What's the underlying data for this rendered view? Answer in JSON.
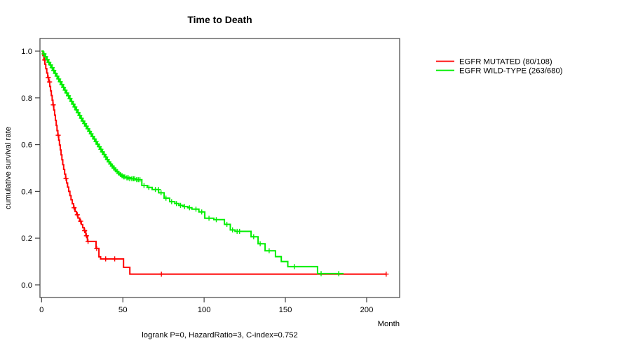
{
  "chart_data": {
    "type": "line",
    "subtype": "kaplan-meier-step",
    "title": "Time to Death",
    "xlabel": "Month",
    "ylabel": "cumulative survival rate",
    "annotation": "logrank P=0, HazardRatio=3, C-index=0.752",
    "legend_position": "right-outside",
    "grid": false,
    "xlim": [
      -1,
      220.3
    ],
    "ylim": [
      -0.054,
      1.054
    ],
    "x_ticks": [
      0,
      50,
      100,
      150,
      200
    ],
    "x_tick_labels": [
      "0",
      "50",
      "100",
      "150",
      "200"
    ],
    "y_ticks": [
      0.0,
      0.2,
      0.4,
      0.6,
      0.8,
      1.0
    ],
    "y_tick_labels": [
      "0.0",
      "0.2",
      "0.4",
      "0.6",
      "0.8",
      "1.0"
    ],
    "axis_color": "#444444",
    "text_color": "#000000",
    "series": [
      {
        "name": "EGFR MUTATED (80/108)",
        "color": "#ff0000",
        "start_value": 1.0,
        "end_month": 212,
        "steps": [
          [
            0.8,
            0.981
          ],
          [
            1.4,
            0.962
          ],
          [
            2.0,
            0.944
          ],
          [
            2.6,
            0.925
          ],
          [
            3.2,
            0.906
          ],
          [
            3.8,
            0.887
          ],
          [
            4.4,
            0.868
          ],
          [
            5.0,
            0.849
          ],
          [
            5.5,
            0.83
          ],
          [
            6.0,
            0.81
          ],
          [
            6.5,
            0.79
          ],
          [
            7.0,
            0.77
          ],
          [
            7.5,
            0.748
          ],
          [
            8.0,
            0.726
          ],
          [
            8.5,
            0.704
          ],
          [
            9.0,
            0.682
          ],
          [
            9.5,
            0.66
          ],
          [
            10.0,
            0.64
          ],
          [
            10.5,
            0.619
          ],
          [
            11.0,
            0.598
          ],
          [
            11.5,
            0.577
          ],
          [
            12.0,
            0.556
          ],
          [
            12.5,
            0.535
          ],
          [
            13.0,
            0.514
          ],
          [
            13.6,
            0.494
          ],
          [
            14.2,
            0.474
          ],
          [
            14.8,
            0.455
          ],
          [
            15.4,
            0.436
          ],
          [
            16.0,
            0.418
          ],
          [
            16.7,
            0.4
          ],
          [
            17.4,
            0.382
          ],
          [
            18.1,
            0.364
          ],
          [
            18.9,
            0.347
          ],
          [
            19.7,
            0.33
          ],
          [
            20.6,
            0.314
          ],
          [
            21.5,
            0.3
          ],
          [
            22.4,
            0.286
          ],
          [
            23.4,
            0.272
          ],
          [
            24.4,
            0.258
          ],
          [
            25.3,
            0.245
          ],
          [
            26.2,
            0.232
          ],
          [
            27.2,
            0.21
          ],
          [
            28.2,
            0.186
          ],
          [
            33.5,
            0.156
          ],
          [
            35.3,
            0.12
          ],
          [
            36.3,
            0.111
          ],
          [
            50.4,
            0.075
          ],
          [
            54.3,
            0.046
          ]
        ],
        "censors": [
          [
            1.8,
            0.962
          ],
          [
            4.1,
            0.887
          ],
          [
            4.9,
            0.868
          ],
          [
            7.2,
            0.77
          ],
          [
            10.2,
            0.64
          ],
          [
            15.0,
            0.455
          ],
          [
            20.0,
            0.33
          ],
          [
            22.0,
            0.3
          ],
          [
            24.0,
            0.272
          ],
          [
            26.5,
            0.232
          ],
          [
            27.6,
            0.21
          ],
          [
            28.6,
            0.186
          ],
          [
            33.9,
            0.156
          ],
          [
            39.4,
            0.111
          ],
          [
            45.0,
            0.111
          ],
          [
            73.7,
            0.046
          ],
          [
            212,
            0.046
          ]
        ]
      },
      {
        "name": "EGFR WILD-TYPE (263/680)",
        "color": "#00ee00",
        "start_value": 1.0,
        "end_month": 185.8,
        "steps": [
          [
            1,
            0.988
          ],
          [
            2,
            0.976
          ],
          [
            3,
            0.964
          ],
          [
            4,
            0.952
          ],
          [
            5,
            0.941
          ],
          [
            6,
            0.929
          ],
          [
            7,
            0.917
          ],
          [
            8,
            0.905
          ],
          [
            9,
            0.893
          ],
          [
            10,
            0.881
          ],
          [
            11,
            0.869
          ],
          [
            12,
            0.857
          ],
          [
            13,
            0.845
          ],
          [
            14,
            0.833
          ],
          [
            15,
            0.821
          ],
          [
            16,
            0.809
          ],
          [
            17,
            0.797
          ],
          [
            18,
            0.785
          ],
          [
            19,
            0.773
          ],
          [
            20,
            0.761
          ],
          [
            21,
            0.749
          ],
          [
            22,
            0.737
          ],
          [
            23,
            0.725
          ],
          [
            24,
            0.713
          ],
          [
            25,
            0.701
          ],
          [
            26,
            0.69
          ],
          [
            27,
            0.679
          ],
          [
            28,
            0.668
          ],
          [
            29,
            0.657
          ],
          [
            30,
            0.646
          ],
          [
            31,
            0.635
          ],
          [
            32,
            0.624
          ],
          [
            33,
            0.613
          ],
          [
            34,
            0.602
          ],
          [
            35,
            0.591
          ],
          [
            36,
            0.58
          ],
          [
            37,
            0.569
          ],
          [
            38,
            0.558
          ],
          [
            39,
            0.547
          ],
          [
            40,
            0.536
          ],
          [
            41,
            0.526
          ],
          [
            42,
            0.517
          ],
          [
            43,
            0.508
          ],
          [
            44,
            0.5
          ],
          [
            45,
            0.492
          ],
          [
            46,
            0.485
          ],
          [
            47,
            0.478
          ],
          [
            48,
            0.472
          ],
          [
            49,
            0.467
          ],
          [
            50,
            0.462
          ],
          [
            52,
            0.458
          ],
          [
            55,
            0.454
          ],
          [
            58,
            0.45
          ],
          [
            61.7,
            0.425
          ],
          [
            65,
            0.417
          ],
          [
            68,
            0.408
          ],
          [
            72,
            0.394
          ],
          [
            75.4,
            0.371
          ],
          [
            78.8,
            0.356
          ],
          [
            82,
            0.348
          ],
          [
            84.5,
            0.34
          ],
          [
            87,
            0.335
          ],
          [
            90,
            0.33
          ],
          [
            92.5,
            0.324
          ],
          [
            96.8,
            0.312
          ],
          [
            100.4,
            0.285
          ],
          [
            106,
            0.279
          ],
          [
            112.5,
            0.259
          ],
          [
            116.1,
            0.235
          ],
          [
            119,
            0.229
          ],
          [
            128.9,
            0.206
          ],
          [
            133.2,
            0.176
          ],
          [
            137.5,
            0.146
          ],
          [
            143.9,
            0.121
          ],
          [
            147.5,
            0.1
          ],
          [
            151.5,
            0.078
          ],
          [
            169.8,
            0.048
          ]
        ],
        "censors": [
          [
            1.5,
            0.988
          ],
          [
            2.5,
            0.976
          ],
          [
            3.5,
            0.964
          ],
          [
            4.5,
            0.952
          ],
          [
            5.5,
            0.941
          ],
          [
            6.5,
            0.929
          ],
          [
            7.5,
            0.917
          ],
          [
            8.5,
            0.905
          ],
          [
            9.5,
            0.893
          ],
          [
            10.5,
            0.881
          ],
          [
            11.5,
            0.869
          ],
          [
            12.5,
            0.857
          ],
          [
            13.5,
            0.845
          ],
          [
            14.5,
            0.833
          ],
          [
            15.5,
            0.821
          ],
          [
            16.5,
            0.809
          ],
          [
            17.5,
            0.797
          ],
          [
            18.5,
            0.785
          ],
          [
            19.5,
            0.773
          ],
          [
            20.5,
            0.761
          ],
          [
            21.5,
            0.749
          ],
          [
            22.5,
            0.737
          ],
          [
            23.5,
            0.725
          ],
          [
            24.5,
            0.713
          ],
          [
            25.5,
            0.701
          ],
          [
            26.5,
            0.69
          ],
          [
            27.5,
            0.679
          ],
          [
            28.5,
            0.668
          ],
          [
            29.5,
            0.657
          ],
          [
            30.5,
            0.646
          ],
          [
            31.5,
            0.635
          ],
          [
            32.5,
            0.624
          ],
          [
            33.5,
            0.613
          ],
          [
            34.5,
            0.602
          ],
          [
            35.5,
            0.591
          ],
          [
            36.5,
            0.58
          ],
          [
            37.5,
            0.569
          ],
          [
            38.5,
            0.558
          ],
          [
            39.5,
            0.547
          ],
          [
            40.5,
            0.536
          ],
          [
            41.5,
            0.526
          ],
          [
            42.5,
            0.517
          ],
          [
            43.5,
            0.508
          ],
          [
            44.5,
            0.5
          ],
          [
            45.5,
            0.492
          ],
          [
            46.5,
            0.485
          ],
          [
            47.5,
            0.478
          ],
          [
            48.5,
            0.472
          ],
          [
            49.5,
            0.467
          ],
          [
            50.5,
            0.462
          ],
          [
            51.2,
            0.462
          ],
          [
            52.5,
            0.458
          ],
          [
            53.3,
            0.458
          ],
          [
            54.2,
            0.454
          ],
          [
            55.5,
            0.454
          ],
          [
            56.5,
            0.454
          ],
          [
            57.3,
            0.454
          ],
          [
            58.5,
            0.45
          ],
          [
            59.5,
            0.45
          ],
          [
            60.5,
            0.45
          ],
          [
            63,
            0.425
          ],
          [
            66,
            0.417
          ],
          [
            70,
            0.408
          ],
          [
            71.9,
            0.408
          ],
          [
            73.5,
            0.394
          ],
          [
            76.5,
            0.371
          ],
          [
            80,
            0.356
          ],
          [
            83,
            0.348
          ],
          [
            85.5,
            0.34
          ],
          [
            88,
            0.335
          ],
          [
            91,
            0.33
          ],
          [
            95,
            0.324
          ],
          [
            98.5,
            0.312
          ],
          [
            103,
            0.285
          ],
          [
            107.5,
            0.279
          ],
          [
            114,
            0.259
          ],
          [
            117.5,
            0.235
          ],
          [
            120.3,
            0.229
          ],
          [
            121.8,
            0.229
          ],
          [
            130.5,
            0.206
          ],
          [
            134.5,
            0.176
          ],
          [
            140,
            0.146
          ],
          [
            155.5,
            0.078
          ],
          [
            172,
            0.048
          ],
          [
            182.8,
            0.048
          ]
        ]
      }
    ]
  }
}
